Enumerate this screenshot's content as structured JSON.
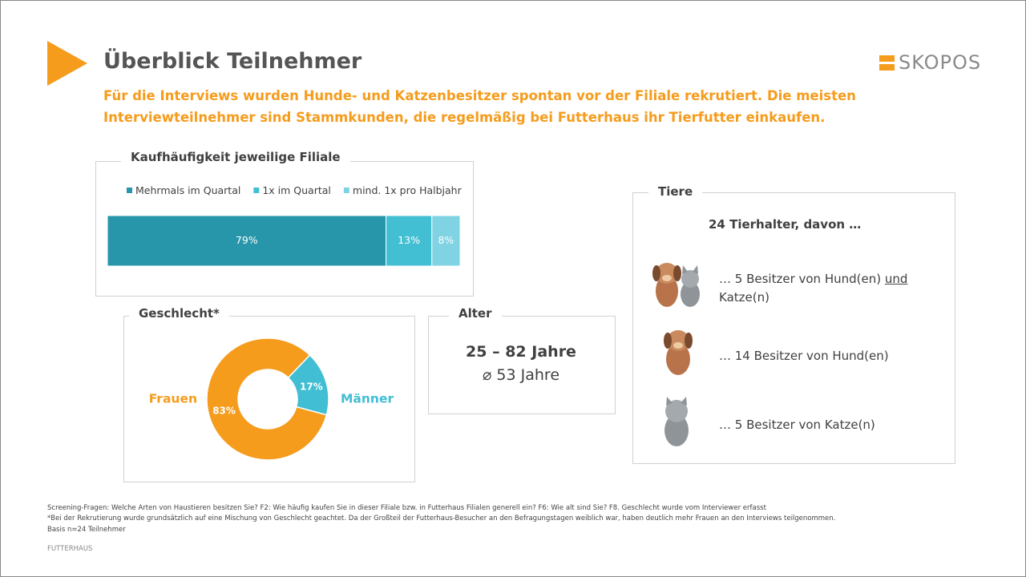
{
  "header": {
    "title": "Überblick Teilnehmer",
    "subtitle": "Für die Interviews wurden Hunde- und Katzenbesitzer spontan vor der Filiale rekrutiert. Die meisten Interviewteilnehmer sind Stammkunden, die regelmäßig bei Futterhaus ihr Tierfutter einkaufen.",
    "logo": "SKOPOS"
  },
  "chart_data": [
    {
      "type": "stacked-bar",
      "title": "Kaufhäufigkeit jeweilige Filiale",
      "xlim": [
        0,
        100
      ],
      "series": [
        {
          "name": "Mehrmals im Quartal",
          "color": "#2796aa",
          "values": [
            79
          ],
          "value_labels": [
            "79%"
          ]
        },
        {
          "name": "1x im Quartal",
          "color": "#43bfd4",
          "values": [
            13
          ],
          "value_labels": [
            "13%"
          ]
        },
        {
          "name": "mind. 1x pro Halbjahr",
          "color": "#7fd3e3",
          "values": [
            8
          ],
          "value_labels": [
            "8%"
          ]
        }
      ]
    },
    {
      "type": "donut",
      "title": "Geschlecht*",
      "categories": [
        "Frauen",
        "Männer"
      ],
      "values": [
        83,
        17
      ],
      "value_labels": [
        "83%",
        "17%"
      ],
      "colors": [
        "#f59c1d",
        "#41bed3"
      ]
    }
  ],
  "age": {
    "title": "Alter",
    "range": "25 – 82 Jahre",
    "mean": "⌀ 53 Jahre"
  },
  "animals": {
    "title": "Tiere",
    "intro": "24 Tierhalter, davon …",
    "both": [
      "… 5 Besitzer von Hund(en)",
      "und",
      "Katze(n)"
    ],
    "dogs": "… 14 Besitzer von Hund(en)",
    "cats": "… 5 Besitzer von Katze(n)"
  },
  "footnotes": [
    "Screening-Fragen: Welche Arten von Haustieren besitzen Sie? F2: Wie häufig kaufen Sie in dieser Filiale bzw. in Futterhaus Filialen generell ein? F6: Wie alt sind Sie? F8. Geschlecht wurde vom Interviewer erfasst",
    "*Bei der Rekrutierung wurde grundsätzlich auf eine Mischung von Geschlecht geachtet. Da der Großteil der Futterhaus-Besucher an den Befragungstagen weiblich war, haben deutlich mehr Frauen an den Interviews teilgenommen.",
    "Basis n=24 Teilnehmer"
  ],
  "footer": "FUTTERHAUS"
}
